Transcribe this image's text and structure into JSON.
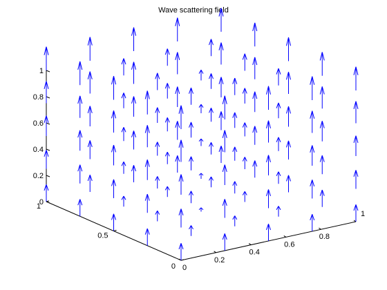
{
  "chart_data": {
    "type": "quiver3d",
    "title": "Wave scattering field",
    "xlabel": "",
    "ylabel": "",
    "zlabel": "",
    "xlim": [
      0,
      1
    ],
    "ylim": [
      0,
      1
    ],
    "zlim": [
      0,
      1
    ],
    "x_ticks": [
      "0",
      "0.2",
      "0.4",
      "0.6",
      "0.8",
      "1"
    ],
    "y_ticks": [
      "0",
      "0.5",
      "1"
    ],
    "z_ticks": [
      "0",
      "0.2",
      "0.4",
      "0.6",
      "0.8",
      "1"
    ],
    "grid": false,
    "arrow_color": "#0000ff",
    "grid_size": [
      5,
      5,
      5
    ],
    "field": "vertical (+z) vectors on a 5×5×5 grid; magnitude grows toward the top layer and toward the grid edges"
  }
}
